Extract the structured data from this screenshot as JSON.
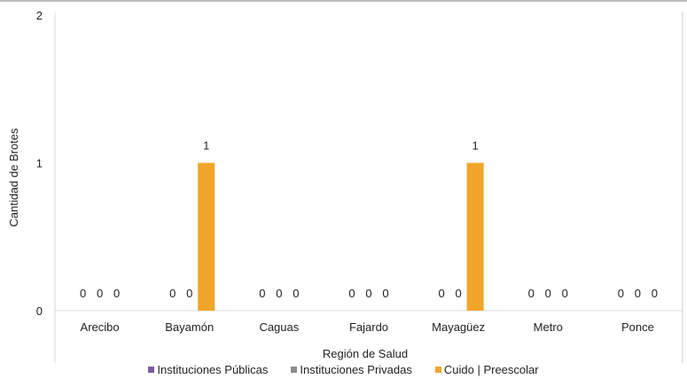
{
  "chart_data": {
    "type": "bar",
    "categories": [
      "Arecibo",
      "Bayamón",
      "Caguas",
      "Fajardo",
      "Mayagüez",
      "Metro",
      "Ponce"
    ],
    "series": [
      {
        "name": "Instituciones Públicas",
        "color": "#7e5aa6",
        "values": [
          0,
          0,
          0,
          0,
          0,
          0,
          0
        ]
      },
      {
        "name": "Instituciones Privadas",
        "color": "#8c8c8c",
        "values": [
          0,
          0,
          0,
          0,
          0,
          0,
          0
        ]
      },
      {
        "name": "Cuido | Preescolar",
        "color": "#f0a52a",
        "values": [
          0,
          1,
          0,
          0,
          1,
          0,
          0
        ]
      }
    ],
    "xlabel": "Región de Salud",
    "ylabel": "Cantidad de Brotes",
    "ylim": [
      0,
      2
    ],
    "yticks": [
      0,
      1,
      2
    ],
    "grid": false,
    "legend": "bottom"
  }
}
